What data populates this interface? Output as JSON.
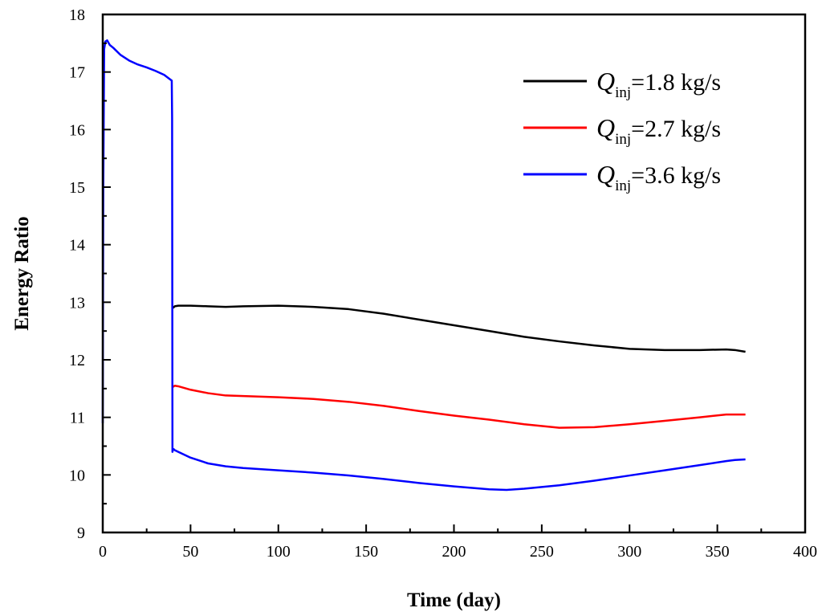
{
  "chart_data": {
    "type": "line",
    "title": "",
    "xlabel": "Time (day)",
    "ylabel": "Energy Ratio",
    "xlim": [
      0,
      400
    ],
    "ylim": [
      9,
      18
    ],
    "xticks": [
      0,
      50,
      100,
      150,
      200,
      250,
      300,
      350,
      400
    ],
    "yticks": [
      9,
      10,
      11,
      12,
      13,
      14,
      15,
      16,
      17,
      18
    ],
    "xtick_labels": [
      "0",
      "50",
      "100",
      "150",
      "200",
      "250",
      "300",
      "350",
      "400"
    ],
    "ytick_labels": [
      "9",
      "10",
      "11",
      "12",
      "13",
      "14",
      "15",
      "16",
      "17",
      "18"
    ],
    "grid": false,
    "legend_position": "top-right",
    "series": [
      {
        "name": "Q_inj=1.8 kg/s",
        "legend": {
          "symbol": "Q",
          "subscript": "inj",
          "rest": "=1.8 kg/s"
        },
        "color": "#000000",
        "x": [
          40,
          41,
          43,
          50,
          60,
          70,
          80,
          100,
          120,
          140,
          160,
          180,
          200,
          220,
          240,
          260,
          280,
          300,
          320,
          340,
          355,
          360,
          366
        ],
        "y": [
          12.9,
          12.93,
          12.94,
          12.94,
          12.93,
          12.92,
          12.93,
          12.94,
          12.92,
          12.88,
          12.8,
          12.7,
          12.6,
          12.5,
          12.4,
          12.32,
          12.25,
          12.19,
          12.17,
          12.17,
          12.18,
          12.17,
          12.14
        ]
      },
      {
        "name": "Q_inj=2.7 kg/s",
        "legend": {
          "symbol": "Q",
          "subscript": "inj",
          "rest": "=2.7 kg/s"
        },
        "color": "#ff0000",
        "x": [
          40,
          41,
          43,
          50,
          60,
          70,
          80,
          100,
          120,
          140,
          160,
          180,
          200,
          220,
          240,
          260,
          280,
          300,
          320,
          340,
          355,
          360,
          366
        ],
        "y": [
          11.53,
          11.55,
          11.54,
          11.48,
          11.42,
          11.38,
          11.37,
          11.35,
          11.32,
          11.27,
          11.2,
          11.11,
          11.03,
          10.96,
          10.88,
          10.82,
          10.83,
          10.88,
          10.94,
          11.0,
          11.05,
          11.05,
          11.05
        ]
      },
      {
        "name": "Q_inj=3.6 kg/s",
        "legend": {
          "symbol": "Q",
          "subscript": "inj",
          "rest": "=3.6 kg/s"
        },
        "color": "#0000ff",
        "x": [
          0,
          0.3,
          0.8,
          1.5,
          2.5,
          4,
          6,
          10,
          15,
          20,
          25,
          30,
          35,
          38,
          39.3,
          39.5,
          39.7,
          40,
          40.3,
          41,
          43,
          50,
          60,
          70,
          80,
          100,
          120,
          140,
          160,
          180,
          200,
          220,
          230,
          240,
          260,
          280,
          300,
          320,
          340,
          355,
          360,
          366
        ],
        "y": [
          10.9,
          15.0,
          17.4,
          17.53,
          17.55,
          17.47,
          17.42,
          17.3,
          17.2,
          17.13,
          17.08,
          17.02,
          16.95,
          16.88,
          16.85,
          16.2,
          10.4,
          10.45,
          10.45,
          10.43,
          10.4,
          10.3,
          10.2,
          10.15,
          10.12,
          10.08,
          10.04,
          9.99,
          9.93,
          9.86,
          9.8,
          9.75,
          9.74,
          9.76,
          9.82,
          9.9,
          9.99,
          10.08,
          10.17,
          10.24,
          10.26,
          10.27
        ]
      }
    ]
  }
}
